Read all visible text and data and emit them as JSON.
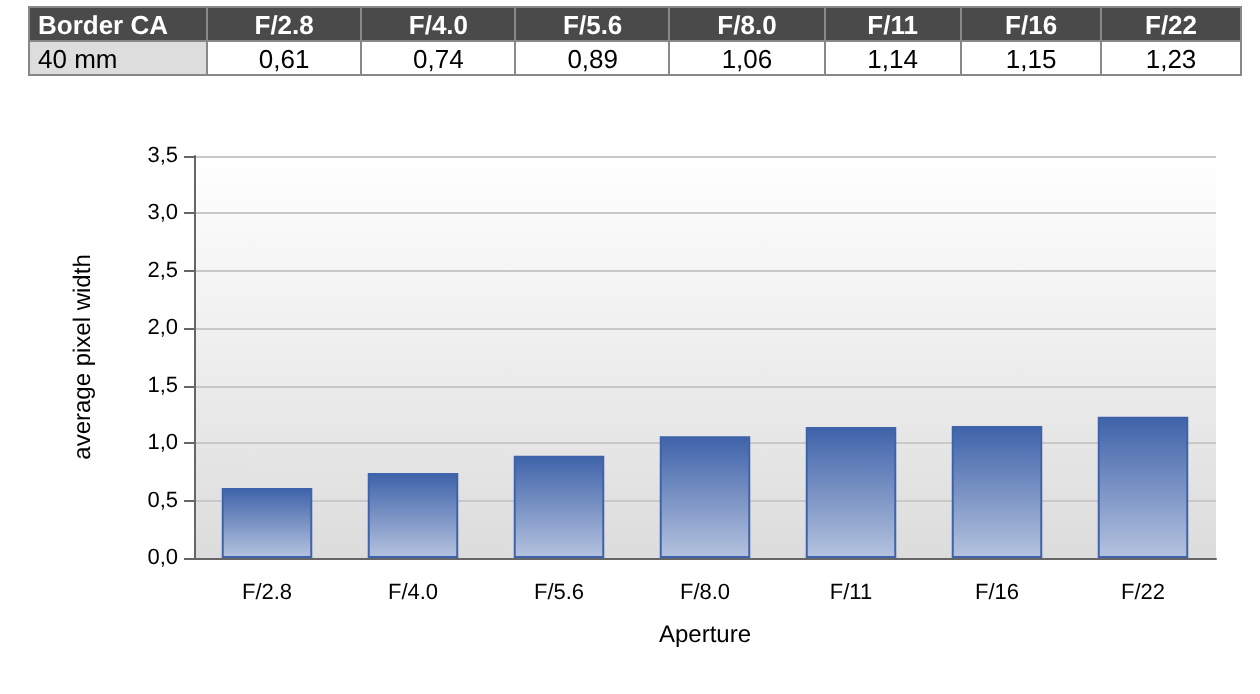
{
  "chart_data": {
    "type": "bar",
    "title": "Border CA",
    "xlabel": "Aperture",
    "ylabel": "average pixel width",
    "categories": [
      "F/2.8",
      "F/4.0",
      "F/5.6",
      "F/8.0",
      "F/11",
      "F/16",
      "F/22"
    ],
    "series": [
      {
        "name": "40 mm",
        "color": "#3f63aa",
        "values": [
          0.61,
          0.74,
          0.89,
          1.06,
          1.14,
          1.15,
          1.23
        ],
        "value_labels": [
          "0,61",
          "0,74",
          "0,89",
          "1,06",
          "1,14",
          "1,15",
          "1,23"
        ]
      }
    ],
    "ylim": [
      0,
      3.5
    ],
    "yticks": [
      {
        "value": 0,
        "label": "0,0"
      },
      {
        "value": 0.5,
        "label": "0,5"
      },
      {
        "value": 1,
        "label": "1,0"
      },
      {
        "value": 1.5,
        "label": "1,5"
      },
      {
        "value": 2,
        "label": "2,0"
      },
      {
        "value": 2.5,
        "label": "2,5"
      },
      {
        "value": 3,
        "label": "3,0"
      },
      {
        "value": 3.5,
        "label": "3,5"
      }
    ],
    "grid": "y",
    "legend": false
  }
}
